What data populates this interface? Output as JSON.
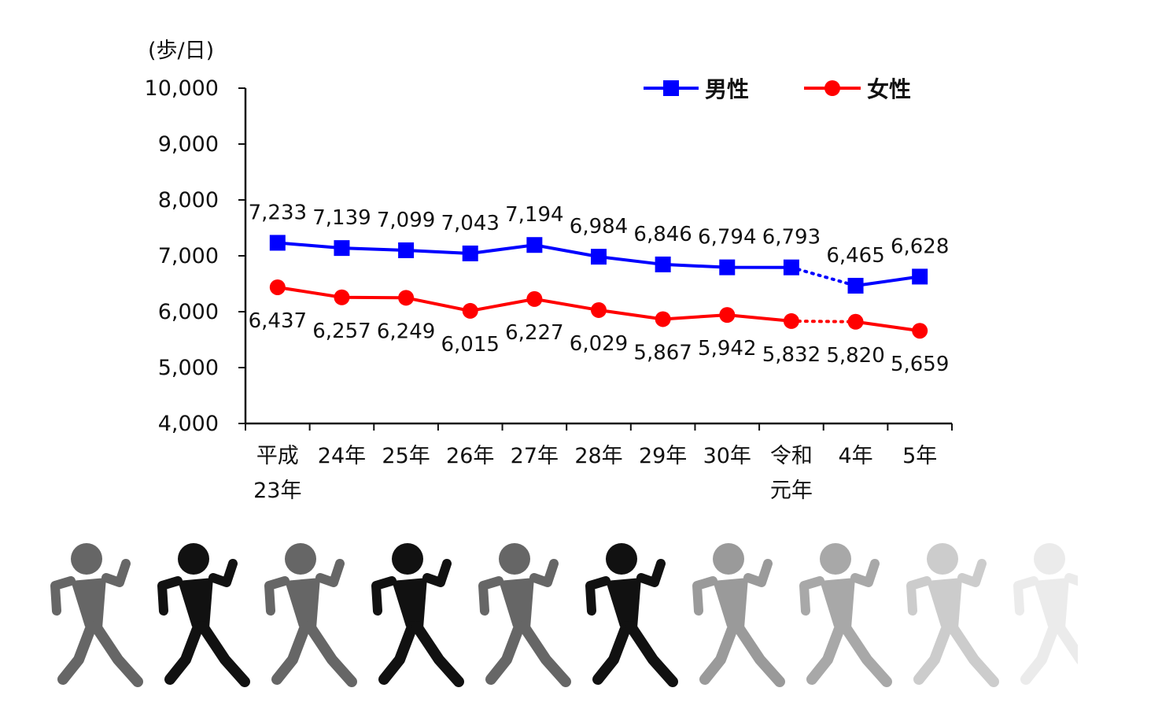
{
  "chart_data": {
    "type": "line",
    "unit_label": "(歩/日)",
    "categories": [
      [
        "平成",
        "23年"
      ],
      [
        "24年"
      ],
      [
        "25年"
      ],
      [
        "26年"
      ],
      [
        "27年"
      ],
      [
        "28年"
      ],
      [
        "29年"
      ],
      [
        "30年"
      ],
      [
        "令和",
        "元年"
      ],
      [
        "4年"
      ],
      [
        "5年"
      ]
    ],
    "ylim": [
      4000,
      10000
    ],
    "yticks": [
      4000,
      5000,
      6000,
      7000,
      8000,
      9000,
      10000
    ],
    "ytick_labels": [
      "4,000",
      "5,000",
      "6,000",
      "7,000",
      "8,000",
      "9,000",
      "10,000"
    ],
    "legend_position": "top-right",
    "gap_after_index": 8,
    "series": [
      {
        "name": "男性",
        "color": "#0000ff",
        "marker": "square",
        "values": [
          7233,
          7139,
          7099,
          7043,
          7194,
          6984,
          6846,
          6794,
          6793,
          6465,
          6628
        ],
        "labels": [
          "7,233",
          "7,139",
          "7,099",
          "7,043",
          "7,194",
          "6,984",
          "6,846",
          "6,794",
          "6,793",
          "6,465",
          "6,628"
        ],
        "label_position": "above"
      },
      {
        "name": "女性",
        "color": "#ff0000",
        "marker": "circle",
        "values": [
          6437,
          6257,
          6249,
          6015,
          6227,
          6029,
          5867,
          5942,
          5832,
          5820,
          5659
        ],
        "labels": [
          "6,437",
          "6,257",
          "6,249",
          "6,015",
          "6,227",
          "6,029",
          "5,867",
          "5,942",
          "5,832",
          "5,820",
          "5,659"
        ],
        "label_position": "below"
      }
    ]
  },
  "decoration": {
    "walker_icon": "walking-person-icon",
    "walker_shades": [
      "#666666",
      "#111111",
      "#666666",
      "#111111",
      "#666666",
      "#111111",
      "#9a9a9a",
      "#a8a8a8",
      "#cccccc",
      "#ebebeb"
    ]
  }
}
